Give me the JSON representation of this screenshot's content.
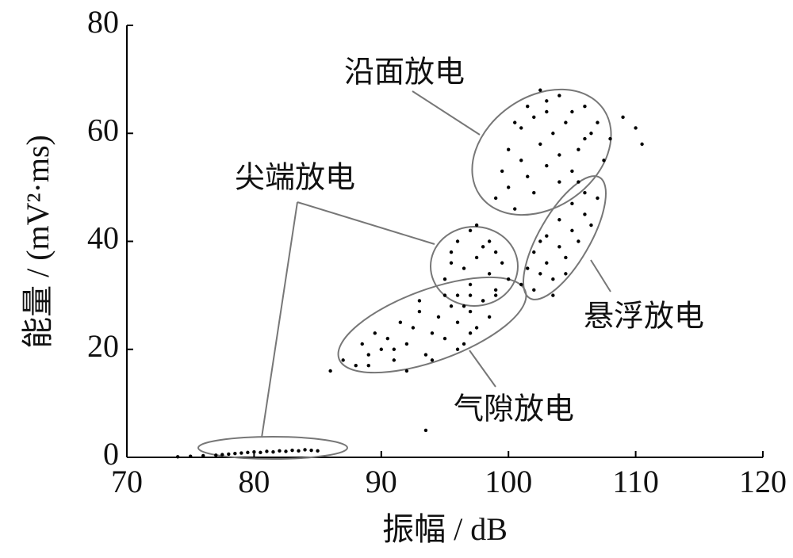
{
  "chart_data": {
    "type": "scatter",
    "xlabel": "振幅 / dB",
    "ylabel": "能量 / (mV²·ms)",
    "xlim": [
      70,
      120
    ],
    "xticks": [
      70,
      80,
      90,
      100,
      110,
      120
    ],
    "ylim": [
      0,
      80
    ],
    "yticks": [
      0,
      20,
      40,
      60,
      80
    ],
    "grid": false,
    "annotations": [
      "沿面放电",
      "尖端放电",
      "悬浮放电",
      "气隙放电"
    ],
    "series": [
      {
        "color": "#000000",
        "x": [
          74,
          75,
          76,
          77,
          77.5,
          78,
          78.5,
          79,
          79.5,
          80,
          80.5,
          81,
          81.5,
          82,
          82.5,
          83,
          83.5,
          84,
          84.5,
          85
        ],
        "values": [
          0.1,
          0.2,
          0.3,
          0.4,
          0.5,
          0.6,
          0.7,
          0.8,
          0.9,
          1.0,
          0.9,
          1.1,
          1.0,
          1.2,
          1.1,
          1.3,
          1.2,
          1.4,
          1.3,
          1.2
        ]
      },
      {
        "color": "#000000",
        "x": [
          86,
          87,
          88,
          88.5,
          89,
          89.5,
          90,
          90.5,
          91,
          91.5,
          92,
          92.5,
          93,
          93.5,
          94,
          94.5,
          95,
          95.5,
          96,
          96.5,
          97,
          97.5,
          98,
          98.5,
          99,
          89,
          91,
          93,
          95,
          97,
          92,
          94,
          96,
          93.5
        ],
        "values": [
          16,
          18,
          17,
          21,
          19,
          23,
          20,
          22,
          18,
          25,
          21,
          24,
          27,
          19,
          23,
          26,
          22,
          28,
          25,
          21,
          27,
          24,
          29,
          26,
          30,
          17,
          20,
          29,
          30,
          23,
          16,
          18,
          20,
          5
        ]
      },
      {
        "color": "#000000",
        "x": [
          95,
          95.5,
          96,
          96,
          96.5,
          97,
          97,
          97.5,
          98,
          98,
          98.5,
          99,
          99.5,
          100,
          96.5,
          97.5,
          98.5,
          95.5,
          99,
          97
        ],
        "values": [
          33,
          38,
          30,
          40,
          35,
          42,
          32,
          37,
          29,
          39,
          34,
          31,
          36,
          33,
          28,
          43,
          40,
          36,
          38,
          30
        ]
      },
      {
        "color": "#000000",
        "x": [
          101,
          101.5,
          102,
          102,
          102.5,
          103,
          103,
          103.5,
          104,
          104,
          104.5,
          105,
          105,
          105.5,
          106,
          106,
          106.5,
          107,
          103.5,
          105.5,
          102.5,
          104.5
        ],
        "values": [
          32,
          35,
          31,
          38,
          34,
          36,
          41,
          33,
          39,
          44,
          37,
          42,
          47,
          40,
          45,
          49,
          43,
          48,
          30,
          51,
          40,
          34
        ]
      },
      {
        "color": "#000000",
        "x": [
          99,
          99.5,
          100,
          100,
          100.5,
          101,
          101,
          101.5,
          102,
          102,
          102.5,
          103,
          103,
          103.5,
          104,
          104,
          104.5,
          105,
          105.5,
          106,
          106.5,
          107,
          107.5,
          108,
          109,
          110,
          110.5,
          101.5,
          102.5,
          104,
          105,
          106,
          103,
          100.5
        ],
        "values": [
          48,
          53,
          50,
          57,
          46,
          55,
          61,
          52,
          63,
          49,
          58,
          66,
          54,
          60,
          67,
          51,
          62,
          64,
          57,
          65,
          60,
          62,
          55,
          59,
          63,
          61,
          58,
          65,
          68,
          56,
          53,
          59,
          64,
          62
        ]
      }
    ]
  }
}
